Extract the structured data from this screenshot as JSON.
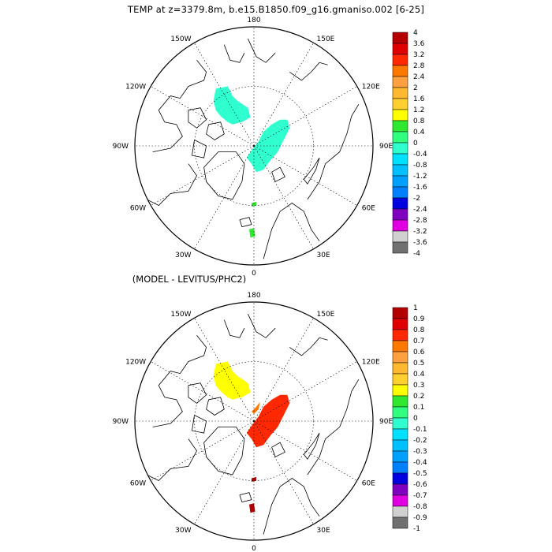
{
  "title": "TEMP at z=3379.8m, b.e15.B1850.f09_g16.gmaniso.002 [6-25]",
  "subtitle": "(MODEL - LEVITUS/PHC2)",
  "maps": [
    {
      "name": "top-map",
      "longitude_labels": {
        "top": "180",
        "upper_left": "150W",
        "upper_right": "150E",
        "left_upper": "120W",
        "right_upper": "120E",
        "left": "90W",
        "right": "90E",
        "left_lower": "60W",
        "right_lower": "60E",
        "lower_left": "30W",
        "lower_right": "30E",
        "bottom": "0"
      },
      "colorbar": {
        "labels": [
          "4",
          "3.6",
          "3.2",
          "2.8",
          "2.4",
          "2",
          "1.6",
          "1.2",
          "0.8",
          "0.4",
          "0",
          "-0.4",
          "-0.8",
          "-1.2",
          "-1.6",
          "-2",
          "-2.4",
          "-2.8",
          "-3.2",
          "-3.6",
          "-4"
        ],
        "colors": [
          "#b40000",
          "#e00000",
          "#ff2800",
          "#ff7800",
          "#ffa040",
          "#ffb830",
          "#ffd030",
          "#ffff00",
          "#30e830",
          "#30ff80",
          "#30ffd0",
          "#00e0ff",
          "#00c0ff",
          "#00a0ff",
          "#0080ff",
          "#0000e0",
          "#8000c0",
          "#e000e0",
          "#d0d0d0",
          "#707070"
        ]
      },
      "regions": [
        {
          "name": "canada-basin-anomaly",
          "color": "#30ffd0"
        },
        {
          "name": "eurasian-basin-anomaly",
          "color": "#30ffd0"
        },
        {
          "name": "greenland-sea-patch",
          "color": "#30e830"
        },
        {
          "name": "north-atlantic-patch",
          "color": "#30e830"
        }
      ]
    },
    {
      "name": "bottom-map",
      "longitude_labels": {
        "top": "180",
        "upper_left": "150W",
        "upper_right": "150E",
        "left_upper": "120W",
        "right_upper": "120E",
        "left": "90W",
        "right": "90E",
        "left_lower": "60W",
        "right_lower": "60E",
        "lower_left": "30W",
        "lower_right": "30E",
        "bottom": "0"
      },
      "colorbar": {
        "labels": [
          "1",
          "0.9",
          "0.8",
          "0.7",
          "0.6",
          "0.5",
          "0.4",
          "0.3",
          "0.2",
          "0.1",
          "0",
          "-0.1",
          "-0.2",
          "-0.3",
          "-0.4",
          "-0.5",
          "-0.6",
          "-0.7",
          "-0.8",
          "-0.9",
          "-1"
        ],
        "colors": [
          "#b40000",
          "#e00000",
          "#ff2800",
          "#ff7800",
          "#ffa040",
          "#ffb830",
          "#ffd030",
          "#ffff00",
          "#30e830",
          "#30ff80",
          "#30ffd0",
          "#00e0ff",
          "#00c0ff",
          "#00a0ff",
          "#0080ff",
          "#0000e0",
          "#8000c0",
          "#e000e0",
          "#d0d0d0",
          "#707070"
        ]
      },
      "regions": [
        {
          "name": "canada-basin-anomaly",
          "color": "#ffff00"
        },
        {
          "name": "eurasian-basin-anomaly",
          "color": "#ff2800"
        },
        {
          "name": "lomonosov-patch",
          "color": "#ff7800"
        },
        {
          "name": "greenland-sea-patch",
          "color": "#b40000"
        },
        {
          "name": "north-atlantic-patch",
          "color": "#b40000"
        }
      ]
    }
  ]
}
